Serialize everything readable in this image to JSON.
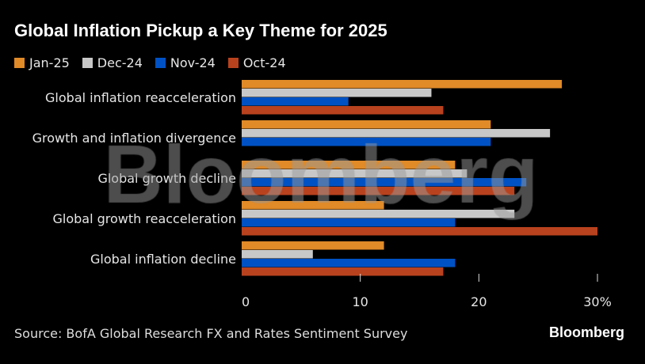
{
  "chart_data": {
    "type": "bar",
    "orientation": "horizontal",
    "title": "Global Inflation Pickup a Key Theme for 2025",
    "categories": [
      "Global inflation reacceleration",
      "Growth and inflation divergence",
      "Global growth decline",
      "Global growth reacceleration",
      "Global inflation decline"
    ],
    "series": [
      {
        "name": "Jan-25",
        "color": "#e08a28",
        "values": [
          27,
          21,
          18,
          12,
          12
        ]
      },
      {
        "name": "Dec-24",
        "color": "#c8c8c8",
        "values": [
          16,
          26,
          19,
          23,
          6
        ]
      },
      {
        "name": "Nov-24",
        "color": "#0052c4",
        "values": [
          9,
          21,
          24,
          18,
          18
        ]
      },
      {
        "name": "Oct-24",
        "color": "#b8421e",
        "values": [
          17,
          0,
          23,
          30,
          17
        ]
      }
    ],
    "xlim": [
      0,
      30
    ],
    "xticks": [
      0,
      10,
      20,
      30
    ],
    "xtick_labels": [
      "0",
      "10",
      "20",
      "30%"
    ],
    "xlabel": "",
    "ylabel": "",
    "legend_position": "top-left",
    "grid": false
  },
  "source": "Source: BofA Global Research FX and Rates Sentiment Survey",
  "brand": "Bloomberg",
  "watermark": "Bloomberg"
}
